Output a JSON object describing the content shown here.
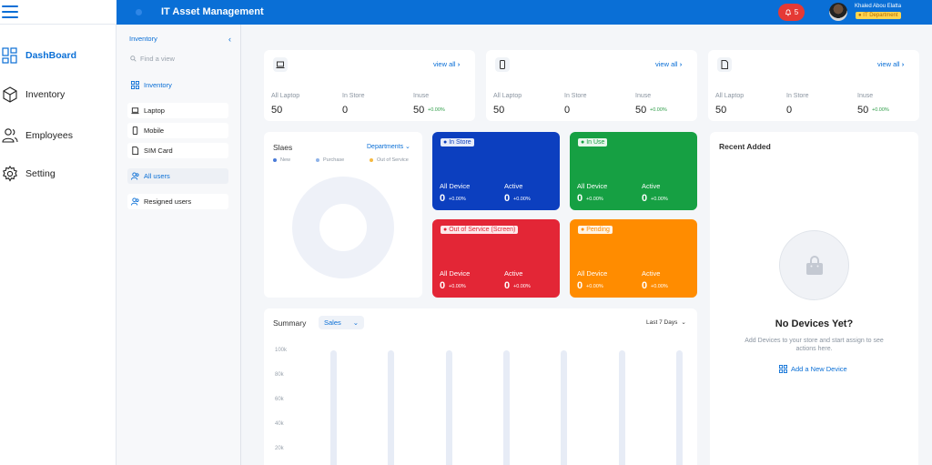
{
  "app": {
    "title": "IT Asset Management"
  },
  "header": {
    "notifications": "5",
    "user_name": "Khaled Abou Elatta",
    "user_department": "IT Department"
  },
  "sidebar": {
    "items": [
      {
        "label": "DashBoard",
        "icon": "dashboard-icon",
        "active": true
      },
      {
        "label": "Inventory",
        "icon": "cube-icon"
      },
      {
        "label": "Employees",
        "icon": "users-icon"
      },
      {
        "label": "Setting",
        "icon": "gear-icon"
      }
    ]
  },
  "subsidebar": {
    "heading": "Inventory",
    "search_placeholder": "Find a view",
    "items": [
      {
        "label": "Inventory",
        "icon": "grid-icon"
      },
      {
        "label": "Laptop",
        "icon": "laptop-icon"
      },
      {
        "label": "Mobile",
        "icon": "mobile-icon"
      },
      {
        "label": "SIM Card",
        "icon": "simcard-icon"
      },
      {
        "label": "All users",
        "icon": "users-icon"
      },
      {
        "label": "Resigned users",
        "icon": "users-icon"
      }
    ]
  },
  "stat_cards": [
    {
      "icon": "laptop-icon",
      "view_all": "view all",
      "all_label": "All Laptop",
      "all_value": "50",
      "store_label": "In Store",
      "store_value": "0",
      "inuse_label": "Inuse",
      "inuse_value": "50",
      "delta": "+0.00%"
    },
    {
      "icon": "mobile-icon",
      "view_all": "view all",
      "all_label": "All Laptop",
      "all_value": "50",
      "store_label": "In Store",
      "store_value": "0",
      "inuse_label": "Inuse",
      "inuse_value": "50",
      "delta": "+0.00%"
    },
    {
      "icon": "simcard-icon",
      "view_all": "view all",
      "all_label": "All Laptop",
      "all_value": "50",
      "store_label": "In Store",
      "store_value": "0",
      "inuse_label": "Inuse",
      "inuse_value": "50",
      "delta": "+0.00%"
    }
  ],
  "sales_chart": {
    "title": "Slaes",
    "dropdown": "Departments",
    "legend": [
      {
        "label": "New",
        "color": "#4a7bd8"
      },
      {
        "label": "Purchase",
        "color": "#8fb3e8"
      },
      {
        "label": "Out of Service",
        "color": "#f5b942"
      }
    ]
  },
  "status_cards": [
    {
      "badge": "In Store",
      "color": "#0c3fbf",
      "all_label": "All Device",
      "all_value": "0",
      "active_label": "Active",
      "active_value": "0",
      "delta": "+0.00%"
    },
    {
      "badge": "In Use",
      "color": "#16a043",
      "all_label": "All Device",
      "all_value": "0",
      "active_label": "Active",
      "active_value": "0",
      "delta": "+0.00%"
    },
    {
      "badge": "Out of Service (Screen)",
      "color": "#e32636",
      "all_label": "All Device",
      "all_value": "0",
      "active_label": "Active",
      "active_value": "0",
      "delta": "+0.00%"
    },
    {
      "badge": "Pending",
      "color": "#ff8c00",
      "all_label": "All Device",
      "all_value": "0",
      "active_label": "Active",
      "active_value": "0",
      "delta": "+0.00%"
    }
  ],
  "recent": {
    "title": "Recent Added",
    "empty_title": "No Devices Yet?",
    "empty_desc": "Add Devices to your store and start assign to see actions here.",
    "add_label": "Add a New Device"
  },
  "summary": {
    "title": "Summary",
    "dropdown": "Sales",
    "range": "Last 7 Days"
  },
  "chart_data": {
    "type": "bar",
    "title": "Summary",
    "categories": [
      "",
      "",
      "",
      "",
      "",
      "",
      ""
    ],
    "y_ticks": [
      "100k",
      "80k",
      "60k",
      "40k",
      "20k"
    ],
    "ylim": [
      0,
      100000
    ],
    "values": [
      100000,
      100000,
      100000,
      100000,
      100000,
      100000,
      100000
    ]
  }
}
